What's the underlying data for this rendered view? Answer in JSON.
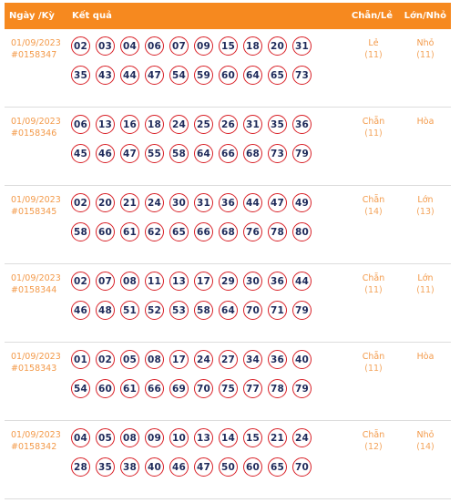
{
  "header": {
    "date_label": "Ngày /Kỳ",
    "result_label": "Kết quả",
    "even_odd_label": "Chẵn/Lẻ",
    "big_small_label": "Lớn/Nhỏ"
  },
  "rows": [
    {
      "date": "01/09/2023",
      "id": "#0158347",
      "line1": [
        "02",
        "03",
        "04",
        "06",
        "07",
        "09",
        "15",
        "18",
        "20",
        "31"
      ],
      "line2": [
        "35",
        "43",
        "44",
        "47",
        "54",
        "59",
        "60",
        "64",
        "65",
        "73"
      ],
      "even_odd": "Lẻ",
      "even_odd_count": "(11)",
      "big_small": "Nhỏ",
      "big_small_count": "(11)"
    },
    {
      "date": "01/09/2023",
      "id": "#0158346",
      "line1": [
        "06",
        "13",
        "16",
        "18",
        "24",
        "25",
        "26",
        "31",
        "35",
        "36"
      ],
      "line2": [
        "45",
        "46",
        "47",
        "55",
        "58",
        "64",
        "66",
        "68",
        "73",
        "79"
      ],
      "even_odd": "Chẵn",
      "even_odd_count": "(11)",
      "big_small": "Hòa",
      "big_small_count": ""
    },
    {
      "date": "01/09/2023",
      "id": "#0158345",
      "line1": [
        "02",
        "20",
        "21",
        "24",
        "30",
        "31",
        "36",
        "44",
        "47",
        "49"
      ],
      "line2": [
        "58",
        "60",
        "61",
        "62",
        "65",
        "66",
        "68",
        "76",
        "78",
        "80"
      ],
      "even_odd": "Chẵn",
      "even_odd_count": "(14)",
      "big_small": "Lớn",
      "big_small_count": "(13)"
    },
    {
      "date": "01/09/2023",
      "id": "#0158344",
      "line1": [
        "02",
        "07",
        "08",
        "11",
        "13",
        "17",
        "29",
        "30",
        "36",
        "44"
      ],
      "line2": [
        "46",
        "48",
        "51",
        "52",
        "53",
        "58",
        "64",
        "70",
        "71",
        "79"
      ],
      "even_odd": "Chẵn",
      "even_odd_count": "(11)",
      "big_small": "Lớn",
      "big_small_count": "(11)"
    },
    {
      "date": "01/09/2023",
      "id": "#0158343",
      "line1": [
        "01",
        "02",
        "05",
        "08",
        "17",
        "24",
        "27",
        "34",
        "36",
        "40"
      ],
      "line2": [
        "54",
        "60",
        "61",
        "66",
        "69",
        "70",
        "75",
        "77",
        "78",
        "79"
      ],
      "even_odd": "Chẵn",
      "even_odd_count": "(11)",
      "big_small": "Hòa",
      "big_small_count": ""
    },
    {
      "date": "01/09/2023",
      "id": "#0158342",
      "line1": [
        "04",
        "05",
        "08",
        "09",
        "10",
        "13",
        "14",
        "15",
        "21",
        "24"
      ],
      "line2": [
        "28",
        "35",
        "38",
        "40",
        "46",
        "47",
        "50",
        "60",
        "65",
        "70"
      ],
      "even_odd": "Chẵn",
      "even_odd_count": "(12)",
      "big_small": "Nhỏ",
      "big_small_count": "(14)"
    }
  ],
  "colors": {
    "header_bg": "#f6891f",
    "accent_text": "#f39a4a",
    "ball_border": "#d81f26",
    "ball_text": "#1e2a5a"
  }
}
